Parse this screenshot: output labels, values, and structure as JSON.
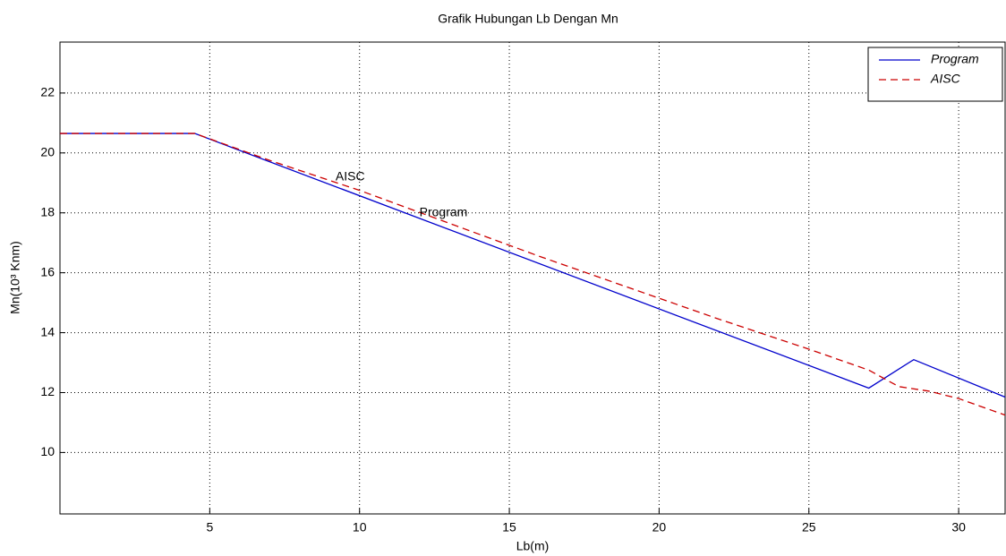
{
  "chart_data": {
    "type": "line",
    "title": "Grafik Hubungan Lb Dengan Mn",
    "x_label": "Lb(m)",
    "y_label": "Mn(10³ Knm)",
    "xlim": [
      0,
      31.55
    ],
    "ylim": [
      7.95,
      23.7
    ],
    "xticks": [
      5,
      10,
      15,
      20,
      25,
      30
    ],
    "yticks": [
      10,
      12,
      14,
      16,
      18,
      20,
      22
    ],
    "grid": true,
    "legend": "upper right",
    "series": [
      {
        "name": "Program",
        "color": "#0000cc",
        "dash": false,
        "x": [
          0,
          4.5,
          27,
          28.5,
          31.55
        ],
        "values": [
          20.65,
          20.65,
          12.15,
          13.1,
          11.85
        ]
      },
      {
        "name": "AISC",
        "color": "#cc0000",
        "dash": true,
        "x": [
          0,
          4.5,
          7,
          10,
          13,
          16,
          19,
          22,
          25,
          27,
          28,
          29,
          30,
          31.55
        ],
        "values": [
          20.65,
          20.65,
          19.75,
          18.75,
          17.65,
          16.55,
          15.5,
          14.45,
          13.45,
          12.75,
          12.2,
          12.05,
          11.8,
          11.25
        ]
      }
    ],
    "annotations": [
      {
        "text": "AISC",
        "x": 9.2,
        "y": 19.2
      },
      {
        "text": "Program",
        "x": 12,
        "y": 18.0
      }
    ]
  }
}
